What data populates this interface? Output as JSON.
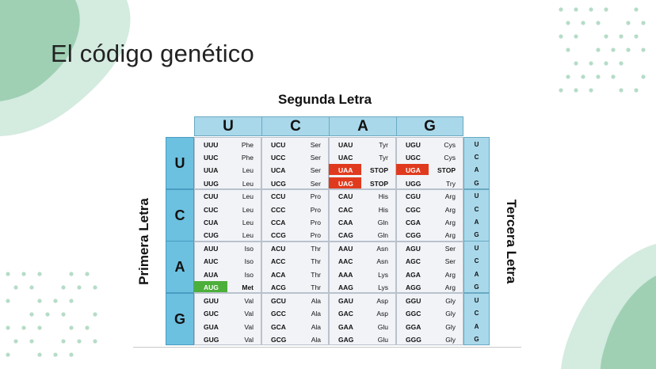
{
  "title": "El código genético",
  "segunda_label": "Segunda Letra",
  "primera_label": "Primera Letra",
  "tercera_label": "Tercera Letra",
  "second_letters": [
    "U",
    "C",
    "A",
    "G"
  ],
  "first_letters": [
    "U",
    "C",
    "A",
    "G"
  ],
  "third_letters": [
    "U",
    "C",
    "A",
    "G"
  ],
  "colors": {
    "header_bg": "#a9d8ea",
    "first_bg": "#6cc0e0",
    "stop_bg": "#e03a1e",
    "start_bg": "#4caf3a",
    "cell_bg": "#f2f3f7"
  },
  "table": [
    [
      [
        [
          "UUU",
          "Phe"
        ],
        [
          "UUC",
          "Phe"
        ],
        [
          "UUA",
          "Leu"
        ],
        [
          "UUG",
          "Leu"
        ]
      ],
      [
        [
          "UCU",
          "Ser"
        ],
        [
          "UCC",
          "Ser"
        ],
        [
          "UCA",
          "Ser"
        ],
        [
          "UCG",
          "Ser"
        ]
      ],
      [
        [
          "UAU",
          "Tyr"
        ],
        [
          "UAC",
          "Tyr"
        ],
        [
          "UAA",
          "STOP"
        ],
        [
          "UAG",
          "STOP"
        ]
      ],
      [
        [
          "UGU",
          "Cys"
        ],
        [
          "UGC",
          "Cys"
        ],
        [
          "UGA",
          "STOP"
        ],
        [
          "UGG",
          "Try"
        ]
      ]
    ],
    [
      [
        [
          "CUU",
          "Leu"
        ],
        [
          "CUC",
          "Leu"
        ],
        [
          "CUA",
          "Leu"
        ],
        [
          "CUG",
          "Leu"
        ]
      ],
      [
        [
          "CCU",
          "Pro"
        ],
        [
          "CCC",
          "Pro"
        ],
        [
          "CCA",
          "Pro"
        ],
        [
          "CCG",
          "Pro"
        ]
      ],
      [
        [
          "CAU",
          "His"
        ],
        [
          "CAC",
          "His"
        ],
        [
          "CAA",
          "Gln"
        ],
        [
          "CAG",
          "Gln"
        ]
      ],
      [
        [
          "CGU",
          "Arg"
        ],
        [
          "CGC",
          "Arg"
        ],
        [
          "CGA",
          "Arg"
        ],
        [
          "CGG",
          "Arg"
        ]
      ]
    ],
    [
      [
        [
          "AUU",
          "Iso"
        ],
        [
          "AUC",
          "Iso"
        ],
        [
          "AUA",
          "Iso"
        ],
        [
          "AUG",
          "Met"
        ]
      ],
      [
        [
          "ACU",
          "Thr"
        ],
        [
          "ACC",
          "Thr"
        ],
        [
          "ACA",
          "Thr"
        ],
        [
          "ACG",
          "Thr"
        ]
      ],
      [
        [
          "AAU",
          "Asn"
        ],
        [
          "AAC",
          "Asn"
        ],
        [
          "AAA",
          "Lys"
        ],
        [
          "AAG",
          "Lys"
        ]
      ],
      [
        [
          "AGU",
          "Ser"
        ],
        [
          "AGC",
          "Ser"
        ],
        [
          "AGA",
          "Arg"
        ],
        [
          "AGG",
          "Arg"
        ]
      ]
    ],
    [
      [
        [
          "GUU",
          "Val"
        ],
        [
          "GUC",
          "Val"
        ],
        [
          "GUA",
          "Val"
        ],
        [
          "GUG",
          "Val"
        ]
      ],
      [
        [
          "GCU",
          "Ala"
        ],
        [
          "GCC",
          "Ala"
        ],
        [
          "GCA",
          "Ala"
        ],
        [
          "GCG",
          "Ala"
        ]
      ],
      [
        [
          "GAU",
          "Asp"
        ],
        [
          "GAC",
          "Asp"
        ],
        [
          "GAA",
          "Glu"
        ],
        [
          "GAG",
          "Glu"
        ]
      ],
      [
        [
          "GGU",
          "Gly"
        ],
        [
          "GGC",
          "Gly"
        ],
        [
          "GGA",
          "Gly"
        ],
        [
          "GGG",
          "Gly"
        ]
      ]
    ]
  ],
  "stop_codons": [
    "UAA",
    "UAG",
    "UGA"
  ],
  "start_codon": "AUG"
}
